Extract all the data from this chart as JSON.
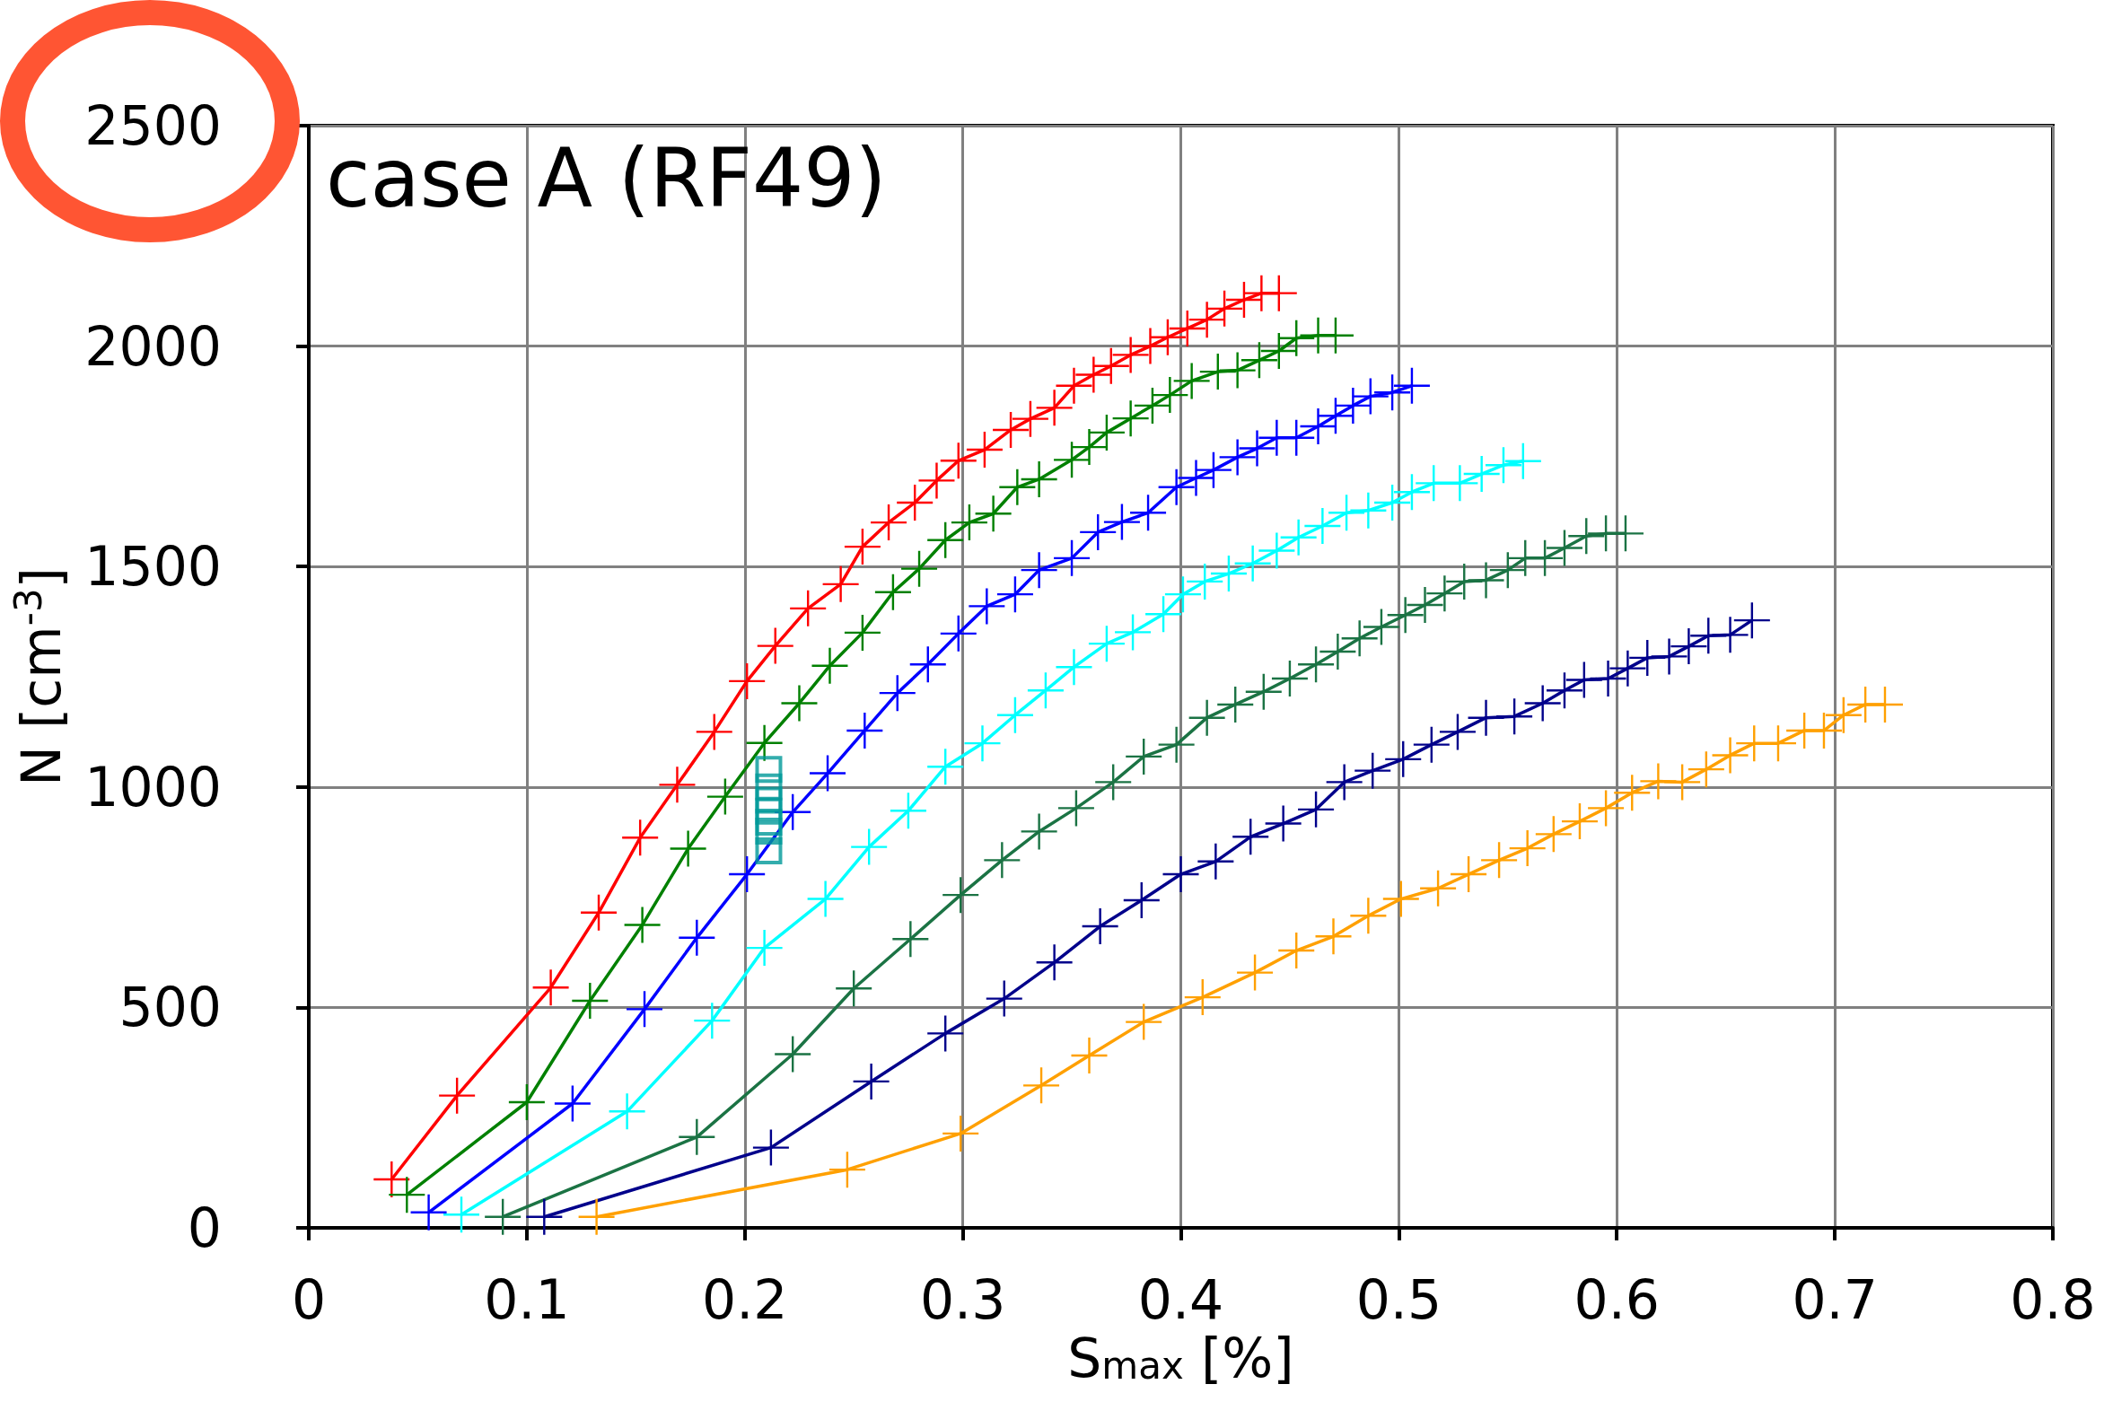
{
  "chart_data": {
    "type": "line",
    "title": "case A (RF49)",
    "xlabel": "S$_{max}$ [%]",
    "ylabel": "N [cm$^{-3}$]",
    "xlim": [
      0,
      0.8
    ],
    "xticks": [
      0,
      0.1,
      0.2,
      0.3,
      0.4,
      0.5,
      0.6,
      0.7,
      0.8
    ],
    "ylim": [
      0,
      2500
    ],
    "yticks": [
      0,
      500,
      1000,
      1500,
      2000,
      2500
    ],
    "grid": true,
    "marker": "cross",
    "line_style": "solid",
    "series": [
      {
        "color": "#ff0000",
        "x": [
          0.038,
          0.068,
          0.111,
          0.133,
          0.152,
          0.169,
          0.186,
          0.201,
          0.214,
          0.229,
          0.244,
          0.254,
          0.266,
          0.278,
          0.288,
          0.298,
          0.31,
          0.322,
          0.331,
          0.342,
          0.351,
          0.36,
          0.368,
          0.377,
          0.386,
          0.394,
          0.403,
          0.412,
          0.42,
          0.429,
          0.437,
          0.445
        ],
        "values": [
          110,
          300,
          545,
          715,
          885,
          1005,
          1125,
          1240,
          1320,
          1405,
          1460,
          1545,
          1600,
          1645,
          1695,
          1740,
          1765,
          1810,
          1835,
          1860,
          1910,
          1935,
          1955,
          1980,
          2000,
          2020,
          2040,
          2060,
          2085,
          2105,
          2120,
          2120
        ]
      },
      {
        "color": "#008000",
        "x": [
          0.045,
          0.1,
          0.129,
          0.153,
          0.174,
          0.191,
          0.209,
          0.225,
          0.239,
          0.254,
          0.268,
          0.28,
          0.292,
          0.303,
          0.314,
          0.325,
          0.335,
          0.35,
          0.358,
          0.366,
          0.377,
          0.387,
          0.395,
          0.405,
          0.417,
          0.426,
          0.436,
          0.445,
          0.453,
          0.463,
          0.471
        ],
        "values": [
          75,
          285,
          515,
          687,
          860,
          978,
          1100,
          1190,
          1275,
          1350,
          1442,
          1495,
          1560,
          1600,
          1620,
          1680,
          1698,
          1742,
          1771,
          1804,
          1836,
          1865,
          1889,
          1921,
          1942,
          1945,
          1968,
          1989,
          2018,
          2024,
          2024
        ]
      },
      {
        "color": "#0000ff",
        "x": [
          0.055,
          0.121,
          0.154,
          0.178,
          0.201,
          0.222,
          0.238,
          0.255,
          0.27,
          0.284,
          0.298,
          0.311,
          0.324,
          0.335,
          0.35,
          0.362,
          0.373,
          0.385,
          0.398,
          0.407,
          0.415,
          0.426,
          0.435,
          0.444,
          0.453,
          0.463,
          0.471,
          0.479,
          0.487,
          0.497,
          0.506
        ],
        "values": [
          35,
          282,
          496,
          658,
          802,
          943,
          1031,
          1128,
          1213,
          1278,
          1348,
          1410,
          1437,
          1492,
          1519,
          1578,
          1601,
          1622,
          1680,
          1701,
          1719,
          1748,
          1768,
          1792,
          1792,
          1818,
          1842,
          1865,
          1886,
          1895,
          1910
        ]
      },
      {
        "color": "#00ffff",
        "x": [
          0.07,
          0.146,
          0.185,
          0.209,
          0.237,
          0.257,
          0.275,
          0.292,
          0.309,
          0.324,
          0.338,
          0.351,
          0.366,
          0.378,
          0.392,
          0.401,
          0.411,
          0.422,
          0.433,
          0.444,
          0.454,
          0.465,
          0.476,
          0.486,
          0.497,
          0.506,
          0.516,
          0.528,
          0.538,
          0.548,
          0.557
        ],
        "values": [
          30,
          264,
          470,
          635,
          746,
          864,
          946,
          1046,
          1099,
          1163,
          1219,
          1272,
          1325,
          1351,
          1392,
          1437,
          1466,
          1484,
          1507,
          1536,
          1566,
          1592,
          1622,
          1627,
          1645,
          1669,
          1689,
          1689,
          1710,
          1730,
          1739
        ]
      },
      {
        "color": "#1b7344",
        "x": [
          0.089,
          0.178,
          0.222,
          0.25,
          0.276,
          0.299,
          0.318,
          0.335,
          0.352,
          0.369,
          0.383,
          0.398,
          0.412,
          0.425,
          0.438,
          0.45,
          0.462,
          0.472,
          0.482,
          0.492,
          0.503,
          0.512,
          0.521,
          0.53,
          0.54,
          0.55,
          0.558,
          0.567,
          0.576,
          0.586,
          0.595,
          0.604
        ],
        "values": [
          25,
          206,
          394,
          543,
          655,
          755,
          834,
          899,
          952,
          1011,
          1069,
          1096,
          1157,
          1187,
          1216,
          1246,
          1278,
          1307,
          1337,
          1363,
          1390,
          1413,
          1439,
          1466,
          1469,
          1492,
          1519,
          1519,
          1542,
          1569,
          1575,
          1575
        ]
      },
      {
        "color": "#00008b",
        "x": [
          0.108,
          0.212,
          0.258,
          0.292,
          0.319,
          0.342,
          0.363,
          0.382,
          0.4,
          0.416,
          0.432,
          0.447,
          0.462,
          0.475,
          0.488,
          0.502,
          0.515,
          0.527,
          0.54,
          0.553,
          0.566,
          0.576,
          0.585,
          0.596,
          0.605,
          0.614,
          0.624,
          0.633,
          0.642,
          0.652,
          0.662
        ],
        "values": [
          25,
          182,
          332,
          441,
          520,
          602,
          684,
          743,
          802,
          831,
          887,
          917,
          949,
          1011,
          1037,
          1063,
          1096,
          1125,
          1157,
          1160,
          1190,
          1219,
          1243,
          1246,
          1269,
          1293,
          1296,
          1319,
          1343,
          1345,
          1378
        ]
      },
      {
        "color": "#ffa000",
        "x": [
          0.132,
          0.247,
          0.299,
          0.336,
          0.358,
          0.383,
          0.41,
          0.434,
          0.453,
          0.47,
          0.486,
          0.501,
          0.518,
          0.532,
          0.546,
          0.559,
          0.571,
          0.583,
          0.595,
          0.607,
          0.619,
          0.63,
          0.641,
          0.652,
          0.663,
          0.674,
          0.686,
          0.695,
          0.704,
          0.714,
          0.723
        ],
        "values": [
          25,
          132,
          214,
          323,
          391,
          467,
          523,
          579,
          629,
          661,
          708,
          746,
          770,
          802,
          834,
          861,
          893,
          922,
          952,
          987,
          1013,
          1011,
          1040,
          1072,
          1099,
          1099,
          1128,
          1128,
          1163,
          1187,
          1187
        ]
      },
      {
        "type": "scatter",
        "marker": "square",
        "color": "#009999",
        "x": [
          0.211,
          0.211,
          0.211,
          0.211,
          0.211,
          0.211,
          0.211
        ],
        "values": [
          1040,
          1000,
          970,
          945,
          920,
          900,
          855
        ]
      }
    ]
  }
}
